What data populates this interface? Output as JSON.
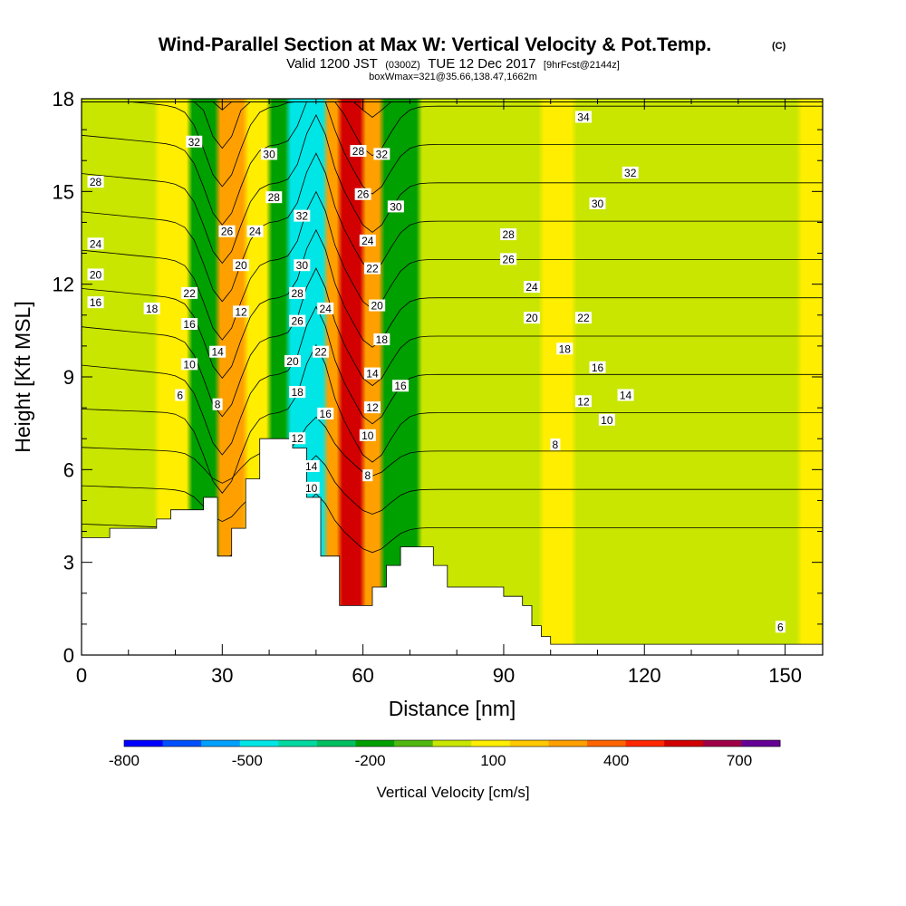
{
  "chart_data": {
    "type": "heatmap",
    "title": "Wind-Parallel Section at Max W: Vertical Velocity & Pot.Temp.",
    "title_mark": "(C)",
    "subtitle_parts": [
      "Valid 1200 JST",
      "(0300Z)",
      "TUE 12 Dec 2017",
      "[9hrFcst@2144z]"
    ],
    "subsubtitle": "boxWmax=321@35.66,138.47,1662m",
    "xlabel": "Distance [nm]",
    "ylabel": "Height [Kft MSL]",
    "xlim": [
      0,
      158
    ],
    "ylim": [
      0,
      18
    ],
    "x_ticks": [
      "0",
      "30",
      "60",
      "90",
      "120",
      "150"
    ],
    "y_ticks": [
      "0",
      "3",
      "6",
      "9",
      "12",
      "15",
      "18"
    ],
    "colorbar": {
      "label": "Vertical Velocity [cm/s]",
      "tick_labels": [
        "-800",
        "-500",
        "-200",
        "100",
        "400",
        "700"
      ],
      "colors": [
        "#0000ff",
        "#0050ff",
        "#00a0ff",
        "#00e6e6",
        "#00d9a0",
        "#00c060",
        "#00a000",
        "#50b810",
        "#c8e600",
        "#ffee00",
        "#ffc800",
        "#ffa000",
        "#ff6400",
        "#ff2800",
        "#d20000",
        "#a00046",
        "#640096"
      ]
    },
    "vertical_velocity_columns": [
      {
        "x": 0,
        "band": "#c8e600"
      },
      {
        "x": 16,
        "band": "#ffee00"
      },
      {
        "x": 23,
        "band": "#00a000"
      },
      {
        "x": 29,
        "band": "#ffa000"
      },
      {
        "x": 35,
        "band": "#ffee00"
      },
      {
        "x": 40,
        "band": "#00a000"
      },
      {
        "x": 44,
        "band": "#00e6e6"
      },
      {
        "x": 52,
        "band": "#ffa000"
      },
      {
        "x": 55,
        "band": "#d20000"
      },
      {
        "x": 60,
        "band": "#ffa000"
      },
      {
        "x": 64,
        "band": "#00a000"
      },
      {
        "x": 72,
        "band": "#c8e600"
      },
      {
        "x": 98,
        "band": "#ffee00"
      },
      {
        "x": 105,
        "band": "#c8e600"
      },
      {
        "x": 153,
        "band": "#ffee00"
      }
    ],
    "terrain_profile": {
      "x": [
        0,
        6,
        6,
        16,
        16,
        19,
        19,
        26,
        26,
        29,
        29,
        32,
        32,
        35,
        35,
        38,
        38,
        45,
        45,
        48,
        48,
        51,
        51,
        55,
        55,
        62,
        62,
        65,
        65,
        68,
        68,
        75,
        75,
        78,
        78,
        90,
        90,
        94,
        94,
        96,
        96,
        98,
        98,
        100,
        100,
        158
      ],
      "z": [
        3.8,
        3.8,
        4.1,
        4.1,
        4.4,
        4.4,
        4.7,
        4.7,
        5.1,
        5.1,
        3.2,
        3.2,
        4.1,
        4.1,
        5.7,
        5.7,
        7.0,
        7.0,
        6.7,
        6.7,
        5.1,
        5.1,
        3.2,
        3.2,
        1.6,
        1.6,
        2.2,
        2.2,
        2.9,
        2.9,
        3.5,
        3.5,
        2.9,
        2.9,
        2.2,
        2.2,
        1.9,
        1.9,
        1.6,
        1.6,
        0.95,
        0.95,
        0.6,
        0.6,
        0.35,
        0.35
      ]
    },
    "theta_contour_labels": [
      {
        "t": "34",
        "x": 107,
        "z": 17.4
      },
      {
        "t": "32",
        "x": 117,
        "z": 15.6
      },
      {
        "t": "30",
        "x": 110,
        "z": 14.6
      },
      {
        "t": "28",
        "x": 91,
        "z": 13.6
      },
      {
        "t": "26",
        "x": 91,
        "z": 12.8
      },
      {
        "t": "24",
        "x": 96,
        "z": 11.9
      },
      {
        "t": "22",
        "x": 107,
        "z": 10.9
      },
      {
        "t": "20",
        "x": 96,
        "z": 10.9
      },
      {
        "t": "18",
        "x": 103,
        "z": 9.9
      },
      {
        "t": "16",
        "x": 110,
        "z": 9.3
      },
      {
        "t": "14",
        "x": 116,
        "z": 8.4
      },
      {
        "t": "12",
        "x": 107,
        "z": 8.2
      },
      {
        "t": "10",
        "x": 112,
        "z": 7.6
      },
      {
        "t": "8",
        "x": 101,
        "z": 6.8
      },
      {
        "t": "6",
        "x": 149,
        "z": 0.9
      },
      {
        "t": "32",
        "x": 24,
        "z": 16.6
      },
      {
        "t": "30",
        "x": 40,
        "z": 16.2
      },
      {
        "t": "28",
        "x": 3,
        "z": 15.3
      },
      {
        "t": "28",
        "x": 41,
        "z": 14.8
      },
      {
        "t": "26",
        "x": 31,
        "z": 13.7
      },
      {
        "t": "24",
        "x": 37,
        "z": 13.7
      },
      {
        "t": "24",
        "x": 3,
        "z": 13.3
      },
      {
        "t": "20",
        "x": 34,
        "z": 12.6
      },
      {
        "t": "20",
        "x": 3,
        "z": 12.3
      },
      {
        "t": "22",
        "x": 23,
        "z": 11.7
      },
      {
        "t": "18",
        "x": 15,
        "z": 11.2
      },
      {
        "t": "16",
        "x": 3,
        "z": 11.4
      },
      {
        "t": "16",
        "x": 23,
        "z": 10.7
      },
      {
        "t": "12",
        "x": 34,
        "z": 11.1
      },
      {
        "t": "14",
        "x": 29,
        "z": 9.8
      },
      {
        "t": "10",
        "x": 23,
        "z": 9.4
      },
      {
        "t": "8",
        "x": 29,
        "z": 8.1
      },
      {
        "t": "6",
        "x": 21,
        "z": 8.4
      },
      {
        "t": "32",
        "x": 47,
        "z": 14.2
      },
      {
        "t": "30",
        "x": 47,
        "z": 12.6
      },
      {
        "t": "28",
        "x": 46,
        "z": 11.7
      },
      {
        "t": "26",
        "x": 46,
        "z": 10.8
      },
      {
        "t": "20",
        "x": 45,
        "z": 9.5
      },
      {
        "t": "18",
        "x": 46,
        "z": 8.5
      },
      {
        "t": "12",
        "x": 46,
        "z": 7.0
      },
      {
        "t": "14",
        "x": 49,
        "z": 6.1
      },
      {
        "t": "10",
        "x": 49,
        "z": 5.4
      },
      {
        "t": "24",
        "x": 52,
        "z": 11.2
      },
      {
        "t": "22",
        "x": 51,
        "z": 9.8
      },
      {
        "t": "16",
        "x": 52,
        "z": 7.8
      },
      {
        "t": "28",
        "x": 59,
        "z": 16.3
      },
      {
        "t": "32",
        "x": 64,
        "z": 16.2
      },
      {
        "t": "26",
        "x": 60,
        "z": 14.9
      },
      {
        "t": "30",
        "x": 67,
        "z": 14.5
      },
      {
        "t": "24",
        "x": 61,
        "z": 13.4
      },
      {
        "t": "22",
        "x": 62,
        "z": 12.5
      },
      {
        "t": "20",
        "x": 63,
        "z": 11.3
      },
      {
        "t": "18",
        "x": 64,
        "z": 10.2
      },
      {
        "t": "14",
        "x": 62,
        "z": 9.1
      },
      {
        "t": "16",
        "x": 68,
        "z": 8.7
      },
      {
        "t": "12",
        "x": 62,
        "z": 8.0
      },
      {
        "t": "10",
        "x": 61,
        "z": 7.1
      },
      {
        "t": "8",
        "x": 61,
        "z": 5.8
      }
    ]
  }
}
